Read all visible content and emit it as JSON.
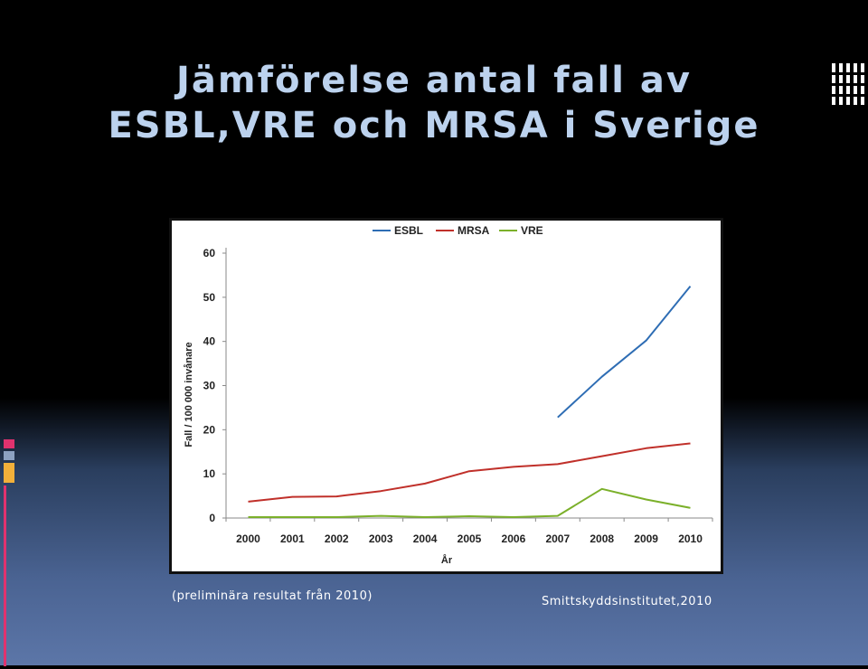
{
  "slide": {
    "title_line1": "Jämförelse antal fall av",
    "title_line2": "ESBL,VRE och MRSA i Sverige",
    "caption_left": "(preliminära resultat från 2010)",
    "caption_right": "Smittskyddsinstitutet,2010"
  },
  "colors": {
    "title": "#bcd2ee",
    "ESBL": "#2e6db4",
    "MRSA": "#c0302a",
    "VRE": "#7bb02a"
  },
  "chart_data": {
    "type": "line",
    "title": "",
    "xlabel": "År",
    "ylabel": "Fall / 100 000 invånare",
    "categories": [
      "2000",
      "2001",
      "2002",
      "2003",
      "2004",
      "2005",
      "2006",
      "2007",
      "2008",
      "2009",
      "2010"
    ],
    "ylim": [
      0,
      60
    ],
    "yticks": [
      0,
      10,
      20,
      30,
      40,
      50,
      60
    ],
    "legend_position": "top",
    "grid": false,
    "series": [
      {
        "name": "ESBL",
        "values": [
          null,
          null,
          null,
          null,
          null,
          null,
          null,
          22.8,
          32,
          40.2,
          52.5
        ]
      },
      {
        "name": "MRSA",
        "values": [
          3.7,
          4.8,
          4.9,
          6.1,
          7.8,
          10.6,
          11.6,
          12.2,
          14.0,
          15.8,
          16.9
        ]
      },
      {
        "name": "VRE",
        "values": [
          0.2,
          0.2,
          0.2,
          0.5,
          0.2,
          0.4,
          0.2,
          0.5,
          6.6,
          4.2,
          2.3
        ]
      }
    ]
  }
}
